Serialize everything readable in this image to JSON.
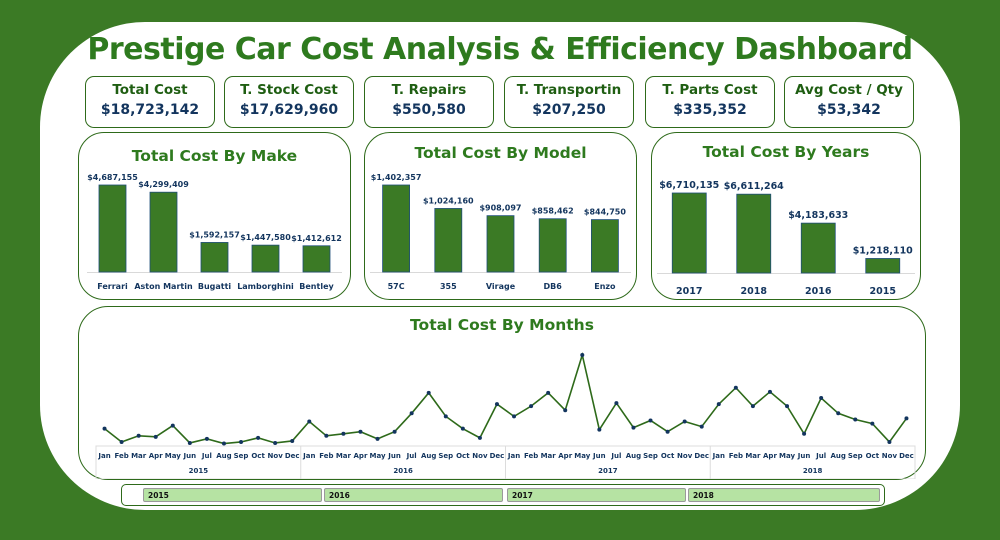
{
  "header": {
    "title": "Prestige Car Cost Analysis & Efficiency Dashboard"
  },
  "kpis": [
    {
      "label": "Total Cost",
      "value": "$18,723,142"
    },
    {
      "label": "T. Stock Cost",
      "value": "$17,629,960"
    },
    {
      "label": "T. Repairs",
      "value": "$550,580"
    },
    {
      "label": "T. Transportin",
      "value": "$207,250"
    },
    {
      "label": "T. Parts Cost",
      "value": "$335,352"
    },
    {
      "label": "Avg Cost / Qty",
      "value": "$53,342"
    }
  ],
  "colors": {
    "frame": "#3b7a25",
    "bar": "#3b7a25",
    "bar_outline": "#1f4e79",
    "title": "#2e7a1e",
    "label": "#13355e",
    "line": "#2e6a1a",
    "marker": "#13355e",
    "slicer_chip": "#b6e3a3"
  },
  "chart_data": [
    {
      "type": "bar",
      "title": "Total Cost By Make",
      "categories": [
        "Ferrari",
        "Aston Martin",
        "Bugatti",
        "Lamborghini",
        "Bentley"
      ],
      "values": [
        4687155,
        4299409,
        1592157,
        1447580,
        1412612
      ],
      "data_labels": [
        "$4,687,155",
        "$4,299,409",
        "$1,592,157",
        "$1,447,580",
        "$1,412,612"
      ],
      "xlabel": "",
      "ylabel": "",
      "ylim": [
        0,
        5000000
      ],
      "grid": false
    },
    {
      "type": "bar",
      "title": "Total Cost By Model",
      "categories": [
        "57C",
        "355",
        "Virage",
        "DB6",
        "Enzo"
      ],
      "values": [
        1402357,
        1024160,
        908097,
        858462,
        844750
      ],
      "data_labels": [
        "$1,402,357",
        "$1,024,160",
        "$908,097",
        "$858,462",
        "$844,750"
      ],
      "xlabel": "",
      "ylabel": "",
      "ylim": [
        0,
        1500000
      ],
      "grid": false
    },
    {
      "type": "bar",
      "title": "Total Cost By Years",
      "categories": [
        "2017",
        "2018",
        "2016",
        "2015"
      ],
      "values": [
        6710135,
        6611264,
        4183633,
        1218110
      ],
      "data_labels": [
        "$6,710,135",
        "$6,611,264",
        "$4,183,633",
        "$1,218,110"
      ],
      "xlabel": "",
      "ylabel": "",
      "ylim": [
        0,
        7000000
      ],
      "grid": false
    },
    {
      "type": "line",
      "title": "Total Cost By Months",
      "years": [
        "2015",
        "2016",
        "2017",
        "2018"
      ],
      "months": [
        "Jan",
        "Feb",
        "Mar",
        "Apr",
        "May",
        "Jun",
        "Jul",
        "Aug",
        "Sep",
        "Oct",
        "Nov",
        "Dec"
      ],
      "series": [
        {
          "name": "2015",
          "values": [
            266000,
            35000,
            142000,
            124000,
            319000,
            18000,
            89000,
            8000,
            35000,
            106000,
            18000,
            53000
          ]
        },
        {
          "name": "2016",
          "values": [
            390000,
            142000,
            177000,
            213000,
            89000,
            213000,
            532000,
            886000,
            479000,
            266000,
            106000,
            691000
          ]
        },
        {
          "name": "2017",
          "values": [
            478000,
            656000,
            886000,
            585000,
            1542000,
            248000,
            709000,
            284000,
            408000,
            213000,
            390000,
            301000
          ]
        },
        {
          "name": "2018",
          "values": [
            691000,
            975000,
            656000,
            904000,
            656000,
            177000,
            797000,
            532000,
            425000,
            354000,
            35000,
            443000
          ]
        }
      ],
      "xlabel": "",
      "ylabel": "",
      "grid": false,
      "legend": "none"
    }
  ],
  "slicer": {
    "items": [
      "2015",
      "2016",
      "2017",
      "2018"
    ]
  }
}
